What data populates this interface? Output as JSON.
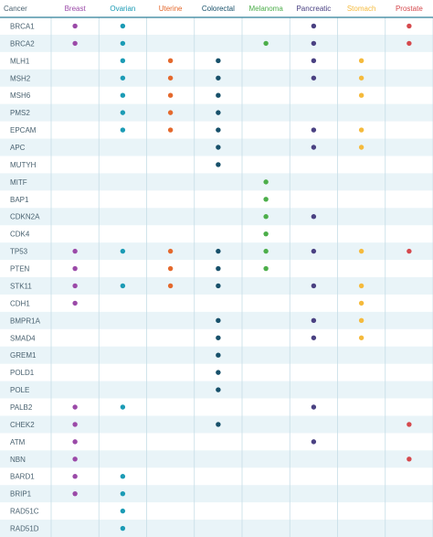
{
  "chart_data": {
    "type": "table",
    "corner_label": "Cancer",
    "columns": [
      {
        "name": "Breast",
        "color": "#9b4aa8"
      },
      {
        "name": "Ovarian",
        "color": "#1b9bb5"
      },
      {
        "name": "Uterine",
        "color": "#e4692d"
      },
      {
        "name": "Colorectal",
        "color": "#17506a"
      },
      {
        "name": "Melanoma",
        "color": "#4cae4a"
      },
      {
        "name": "Pancreatic",
        "color": "#4a4182"
      },
      {
        "name": "Stomach",
        "color": "#f5ba3c"
      },
      {
        "name": "Prostate",
        "color": "#d5494d"
      }
    ],
    "rows": [
      {
        "gene": "BRCA1",
        "cancers": [
          "Breast",
          "Ovarian",
          "Pancreatic",
          "Prostate"
        ]
      },
      {
        "gene": "BRCA2",
        "cancers": [
          "Breast",
          "Ovarian",
          "Melanoma",
          "Pancreatic",
          "Prostate"
        ]
      },
      {
        "gene": "MLH1",
        "cancers": [
          "Ovarian",
          "Uterine",
          "Colorectal",
          "Pancreatic",
          "Stomach"
        ]
      },
      {
        "gene": "MSH2",
        "cancers": [
          "Ovarian",
          "Uterine",
          "Colorectal",
          "Pancreatic",
          "Stomach"
        ]
      },
      {
        "gene": "MSH6",
        "cancers": [
          "Ovarian",
          "Uterine",
          "Colorectal",
          "Stomach"
        ]
      },
      {
        "gene": "PMS2",
        "cancers": [
          "Ovarian",
          "Uterine",
          "Colorectal"
        ]
      },
      {
        "gene": "EPCAM",
        "cancers": [
          "Ovarian",
          "Uterine",
          "Colorectal",
          "Pancreatic",
          "Stomach"
        ]
      },
      {
        "gene": "APC",
        "cancers": [
          "Colorectal",
          "Pancreatic",
          "Stomach"
        ]
      },
      {
        "gene": "MUTYH",
        "cancers": [
          "Colorectal"
        ]
      },
      {
        "gene": "MITF",
        "cancers": [
          "Melanoma"
        ]
      },
      {
        "gene": "BAP1",
        "cancers": [
          "Melanoma"
        ]
      },
      {
        "gene": "CDKN2A",
        "cancers": [
          "Melanoma",
          "Pancreatic"
        ]
      },
      {
        "gene": "CDK4",
        "cancers": [
          "Melanoma"
        ]
      },
      {
        "gene": "TP53",
        "cancers": [
          "Breast",
          "Ovarian",
          "Uterine",
          "Colorectal",
          "Melanoma",
          "Pancreatic",
          "Stomach",
          "Prostate"
        ]
      },
      {
        "gene": "PTEN",
        "cancers": [
          "Breast",
          "Uterine",
          "Colorectal",
          "Melanoma"
        ]
      },
      {
        "gene": "STK11",
        "cancers": [
          "Breast",
          "Ovarian",
          "Uterine",
          "Colorectal",
          "Pancreatic",
          "Stomach"
        ]
      },
      {
        "gene": "CDH1",
        "cancers": [
          "Breast",
          "Stomach"
        ]
      },
      {
        "gene": "BMPR1A",
        "cancers": [
          "Colorectal",
          "Pancreatic",
          "Stomach"
        ]
      },
      {
        "gene": "SMAD4",
        "cancers": [
          "Colorectal",
          "Pancreatic",
          "Stomach"
        ]
      },
      {
        "gene": "GREM1",
        "cancers": [
          "Colorectal"
        ]
      },
      {
        "gene": "POLD1",
        "cancers": [
          "Colorectal"
        ]
      },
      {
        "gene": "POLE",
        "cancers": [
          "Colorectal"
        ]
      },
      {
        "gene": "PALB2",
        "cancers": [
          "Breast",
          "Ovarian",
          "Pancreatic"
        ]
      },
      {
        "gene": "CHEK2",
        "cancers": [
          "Breast",
          "Colorectal",
          "Prostate"
        ]
      },
      {
        "gene": "ATM",
        "cancers": [
          "Breast",
          "Pancreatic"
        ]
      },
      {
        "gene": "NBN",
        "cancers": [
          "Breast",
          "Prostate"
        ]
      },
      {
        "gene": "BARD1",
        "cancers": [
          "Breast",
          "Ovarian"
        ]
      },
      {
        "gene": "BRIP1",
        "cancers": [
          "Breast",
          "Ovarian"
        ]
      },
      {
        "gene": "RAD51C",
        "cancers": [
          "Ovarian"
        ]
      },
      {
        "gene": "RAD51D",
        "cancers": [
          "Ovarian"
        ]
      }
    ],
    "colors": {
      "header_rule": "#2e7f99",
      "row_alt_bg": "#e9f4f8",
      "grid_line": "#c6dde6",
      "gene_text": "#4a6270"
    }
  }
}
